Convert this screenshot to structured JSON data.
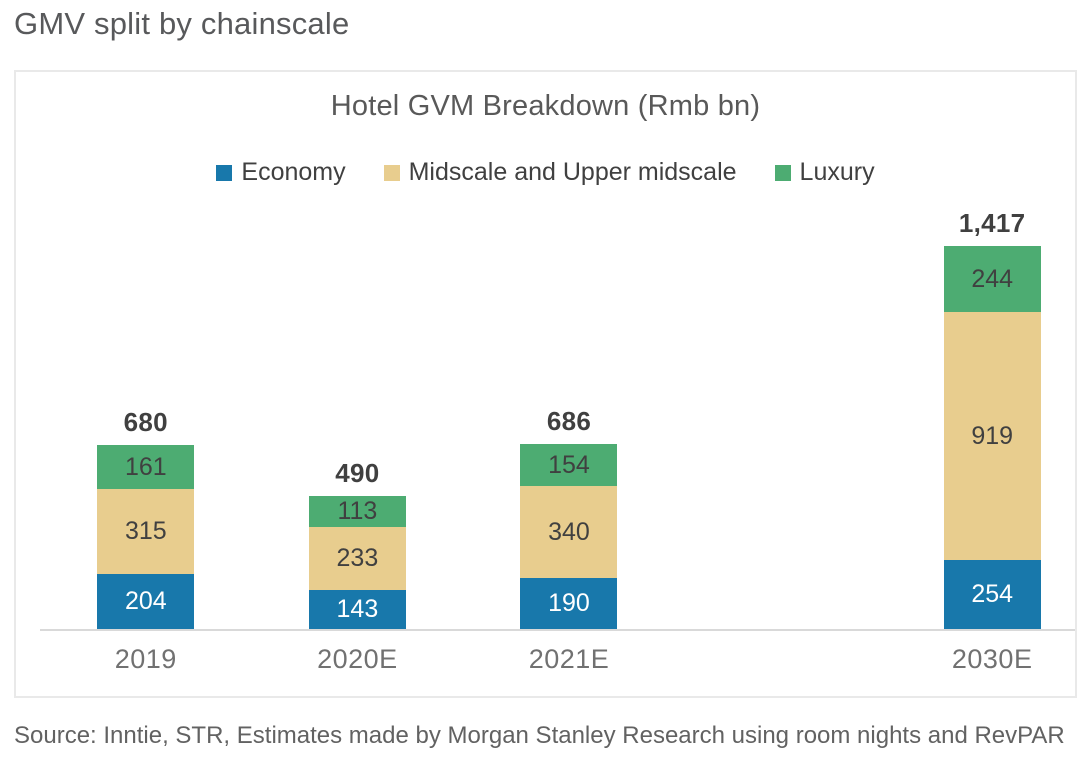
{
  "page": {
    "title": "GMV split by chainscale",
    "source": "Source: Inntie, STR, Estimates made by Morgan Stanley Research using room nights and RevPAR"
  },
  "chart_data": {
    "type": "bar",
    "stacked": true,
    "title": "Hotel GVM Breakdown (Rmb bn)",
    "legend_position": "top",
    "grid": false,
    "categories": [
      "2019",
      "2020E",
      "2021E",
      "2030E"
    ],
    "slot_layout": [
      0,
      1,
      2,
      null,
      3
    ],
    "series": [
      {
        "name": "Economy",
        "color": "#1878ab",
        "label_color": "#ffffff",
        "values": [
          204,
          143,
          190,
          254
        ]
      },
      {
        "name": "Midscale and Upper midscale",
        "color": "#e8cd8e",
        "label_color": "#404040",
        "values": [
          315,
          233,
          340,
          919
        ]
      },
      {
        "name": "Luxury",
        "color": "#4dac72",
        "label_color": "#404040",
        "values": [
          161,
          113,
          154,
          244
        ]
      }
    ],
    "totals": [
      "680",
      "490",
      "686",
      "1,417"
    ],
    "total_values": [
      680,
      490,
      686,
      1417
    ],
    "ylim": [
      0,
      1480
    ],
    "colors": {
      "axis_line": "#d9d9d9",
      "total_label": "#404040",
      "axis_label": "#717171",
      "title": "#595959"
    }
  }
}
